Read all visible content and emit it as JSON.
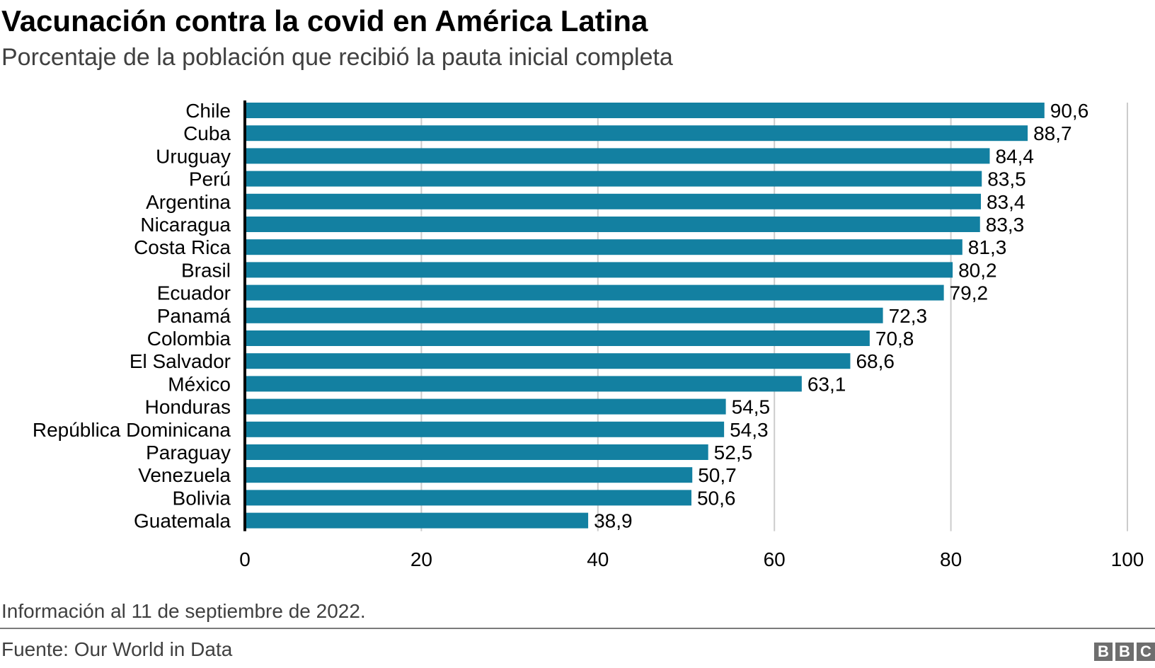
{
  "chart_data": {
    "type": "bar",
    "orientation": "horizontal",
    "title": "Vacunación contra la covid en América Latina",
    "subtitle": "Porcentaje de la población que recibió la pauta inicial completa",
    "categories": [
      "Chile",
      "Cuba",
      "Uruguay",
      "Perú",
      "Argentina",
      "Nicaragua",
      "Costa Rica",
      "Brasil",
      "Ecuador",
      "Panamá",
      "Colombia",
      "El Salvador",
      "México",
      "Honduras",
      "República Dominicana",
      "Paraguay",
      "Venezuela",
      "Bolivia",
      "Guatemala"
    ],
    "values": [
      90.6,
      88.7,
      84.4,
      83.5,
      83.4,
      83.3,
      81.3,
      80.2,
      79.2,
      72.3,
      70.8,
      68.6,
      63.1,
      54.5,
      54.3,
      52.5,
      50.7,
      50.6,
      38.9
    ],
    "value_labels": [
      "90,6",
      "88,7",
      "84,4",
      "83,5",
      "83,4",
      "83,3",
      "81,3",
      "80,2",
      "79,2",
      "72,3",
      "70,8",
      "68,6",
      "63,1",
      "54,5",
      "54,3",
      "52,5",
      "50,7",
      "50,6",
      "38,9"
    ],
    "xlim": [
      0,
      100
    ],
    "xticks": [
      0,
      20,
      40,
      60,
      80,
      100
    ],
    "xtick_labels": [
      "0",
      "20",
      "40",
      "60",
      "80",
      "100"
    ],
    "grid": "vertical",
    "bar_color": "#1380A1",
    "note": "Información al 11 de septiembre de 2022.",
    "source": "Fuente: Our World in Data"
  },
  "logo": "BBC"
}
